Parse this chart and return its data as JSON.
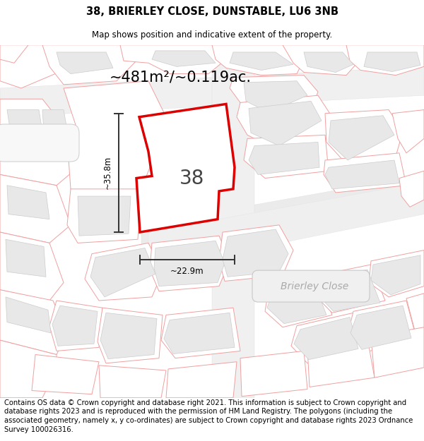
{
  "title_line1": "38, BRIERLEY CLOSE, DUNSTABLE, LU6 3NB",
  "title_line2": "Map shows position and indicative extent of the property.",
  "area_label": "~481m²/~0.119ac.",
  "number_label": "38",
  "width_label": "~22.9m",
  "height_label": "~35.8m",
  "road_label": "Brierley Close",
  "footer_text": "Contains OS data © Crown copyright and database right 2021. This information is subject to Crown copyright and database rights 2023 and is reproduced with the permission of HM Land Registry. The polygons (including the associated geometry, namely x, y co-ordinates) are subject to Crown copyright and database rights 2023 Ordnance Survey 100026316.",
  "map_bg": "#ffffff",
  "plot_edge_color": "#dd0000",
  "plot_fill": "#ffffff",
  "bld_fill": "#e8e8e8",
  "bld_edge": "#cccccc",
  "prop_edge": "#f0a0a0",
  "prop_fill": "#ffffff",
  "road_area_fill": "#eeeeee",
  "road_label_color": "#aaaaaa",
  "dim_color": "#333333",
  "title_fontsize": 10.5,
  "subtitle_fontsize": 8.5,
  "area_fontsize": 15,
  "number_fontsize": 20,
  "label_fontsize": 8.5,
  "footer_fontsize": 7.2,
  "road_label_fontsize": 10
}
